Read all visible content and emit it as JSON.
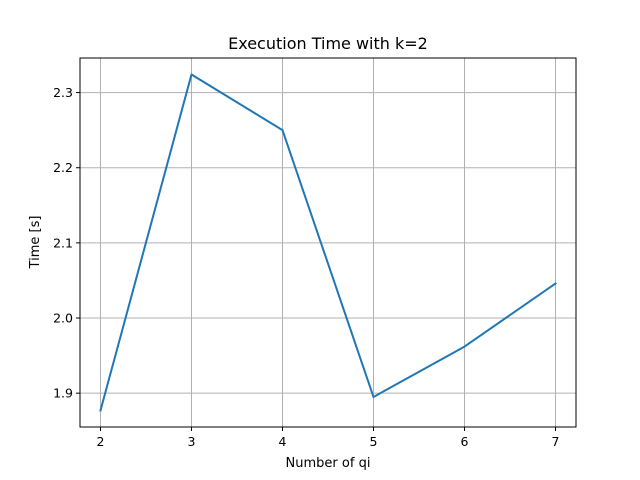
{
  "chart_data": {
    "type": "line",
    "title": "Execution Time with k=2",
    "xlabel": "Number of qi",
    "ylabel": "Time [s]",
    "x": [
      2,
      3,
      4,
      5,
      6,
      7
    ],
    "series": [
      {
        "values": [
          1.877,
          2.324,
          2.25,
          1.895,
          1.962,
          2.046
        ],
        "color": "#1f77b4"
      }
    ],
    "xticks": [
      "2",
      "3",
      "4",
      "5",
      "6",
      "7"
    ],
    "yticks": [
      "1.9",
      "2.0",
      "2.1",
      "2.2",
      "2.3"
    ],
    "ytick_values": [
      1.9,
      2.0,
      2.1,
      2.2,
      2.3
    ],
    "xlim": [
      1.775,
      7.225
    ],
    "ylim": [
      1.855,
      2.346
    ],
    "grid": true,
    "legend": "none"
  }
}
